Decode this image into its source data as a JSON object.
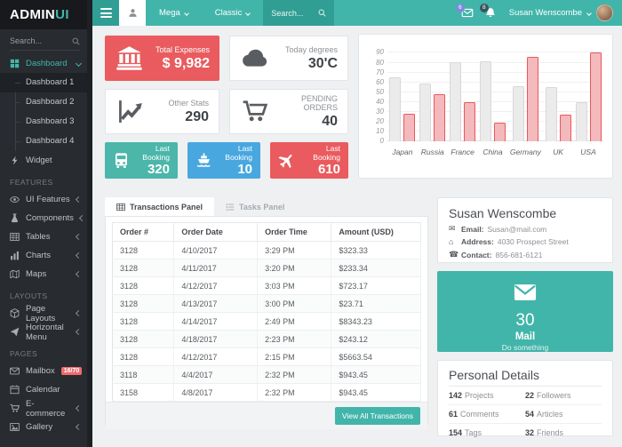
{
  "brand": {
    "primary": "ADMIN",
    "accent": "UI"
  },
  "colors": {
    "teal": "#42b5aa",
    "teal_dark": "#319e94",
    "red": "#e95b5e",
    "blue": "#48a7df",
    "badge_red": "#ef6b6e",
    "sidebar_bg": "#282b30"
  },
  "navbar": {
    "search_placeholder": "Search...",
    "menu_items": [
      {
        "label": "Mega"
      },
      {
        "label": "Classic"
      }
    ],
    "mail_badge": "6",
    "alert_badge": "8",
    "user_name": "Susan Wenscombe"
  },
  "sidebar": {
    "search_placeholder": "Search...",
    "sections": [
      {
        "items": [
          {
            "icon": "grid",
            "label": "Dashboard",
            "active": true,
            "chevron": "down",
            "children": [
              {
                "label": "Dashboard 1",
                "active": true
              },
              {
                "label": "Dashboard 2"
              },
              {
                "label": "Dashboard 3"
              },
              {
                "label": "Dashboard 4"
              }
            ]
          },
          {
            "icon": "bolt",
            "label": "Widget"
          }
        ]
      },
      {
        "header": "FEATURES",
        "items": [
          {
            "icon": "eye",
            "label": "UI Features",
            "chevron": "left"
          },
          {
            "icon": "flask",
            "label": "Components",
            "chevron": "left"
          },
          {
            "icon": "table",
            "label": "Tables",
            "chevron": "left"
          },
          {
            "icon": "bar-chart",
            "label": "Charts",
            "chevron": "left"
          },
          {
            "icon": "map",
            "label": "Maps",
            "chevron": "left"
          }
        ]
      },
      {
        "header": "LAYOUTS",
        "items": [
          {
            "icon": "cube",
            "label": "Page Layouts",
            "chevron": "left"
          },
          {
            "icon": "paper-plane",
            "label": "Horizontal Menu",
            "chevron": "left"
          }
        ]
      },
      {
        "header": "PAGES",
        "items": [
          {
            "icon": "envelope",
            "label": "Mailbox",
            "badge": "16/70"
          },
          {
            "icon": "calendar",
            "label": "Calendar"
          },
          {
            "icon": "cart",
            "label": "E-commerce",
            "chevron": "left"
          },
          {
            "icon": "image",
            "label": "Gallery",
            "chevron": "left"
          }
        ]
      }
    ]
  },
  "stats_cards": [
    {
      "icon": "bank",
      "label": "Total Expenses",
      "value": "$ 9,982",
      "theme": "red"
    },
    {
      "icon": "cloud",
      "label": "Today degrees",
      "value": "30'C",
      "theme": "light"
    },
    {
      "icon": "line-chart",
      "label": "Other Stats",
      "value": "290",
      "theme": "light"
    },
    {
      "icon": "cart",
      "label": "PENDING ORDERS",
      "value": "40",
      "theme": "light"
    }
  ],
  "booking_cards": [
    {
      "icon": "bus",
      "label": "Last Booking",
      "value": "320",
      "color": "#4bb6a9"
    },
    {
      "icon": "ship",
      "label": "Last Booking",
      "value": "10",
      "color": "#48a7df"
    },
    {
      "icon": "plane",
      "label": "Last Booking",
      "value": "610",
      "color": "#e95b5e"
    }
  ],
  "chart_data": {
    "type": "bar",
    "categories": [
      "Japan",
      "Russia",
      "France",
      "China",
      "Germany",
      "UK",
      "USA"
    ],
    "series": [
      {
        "name": "gray",
        "color": "#ebebeb",
        "border": "#d8d8d8",
        "values": [
          65,
          59,
          80,
          81,
          56,
          55,
          40
        ]
      },
      {
        "name": "pink",
        "color": "#f4b9bc",
        "border": "#e9595b",
        "values": [
          28,
          48,
          40,
          19,
          86,
          27,
          90
        ]
      }
    ],
    "ylim": [
      0,
      90
    ],
    "ytick_step": 10,
    "grid": true,
    "legend": "none",
    "title": "",
    "xlabel": "",
    "ylabel": ""
  },
  "transactions": {
    "tabs": [
      {
        "label": "Transactions Panel",
        "icon": "table",
        "active": true
      },
      {
        "label": "Tasks Panel",
        "icon": "tasks",
        "active": false
      }
    ],
    "headers": [
      "Order #",
      "Order Date",
      "Order Time",
      "Amount (USD)"
    ],
    "rows": [
      [
        "3128",
        "4/10/2017",
        "3:29 PM",
        "$323.33"
      ],
      [
        "3128",
        "4/11/2017",
        "3:20 PM",
        "$233.34"
      ],
      [
        "3128",
        "4/12/2017",
        "3:03 PM",
        "$723.17"
      ],
      [
        "3128",
        "4/13/2017",
        "3:00 PM",
        "$23.71"
      ],
      [
        "3128",
        "4/14/2017",
        "2:49 PM",
        "$8343.23"
      ],
      [
        "3128",
        "4/18/2017",
        "2:23 PM",
        "$243.12"
      ],
      [
        "3128",
        "4/12/2017",
        "2:15 PM",
        "$5663.54"
      ],
      [
        "3118",
        "4/4/2017",
        "2:32 PM",
        "$943.45"
      ],
      [
        "3158",
        "4/8/2017",
        "2:32 PM",
        "$943.45"
      ]
    ],
    "footer_button": "View All Transactions"
  },
  "profile": {
    "name": "Susan Wenscombe",
    "email_label": "Email:",
    "email": "Susan@mail.com",
    "address_label": "Address:",
    "address": "4030 Prospect Street",
    "contact_label": "Contact:",
    "contact": "856-681-6121"
  },
  "mail_card": {
    "count": "30",
    "label": "Mail",
    "sublabel": "Do something"
  },
  "personal_details": {
    "title": "Personal Details",
    "stats": [
      {
        "value": "142",
        "label": "Projects"
      },
      {
        "value": "22",
        "label": "Followers"
      },
      {
        "value": "61",
        "label": "Comments"
      },
      {
        "value": "54",
        "label": "Articles"
      },
      {
        "value": "154",
        "label": "Tags"
      },
      {
        "value": "32",
        "label": "Friends"
      }
    ]
  }
}
